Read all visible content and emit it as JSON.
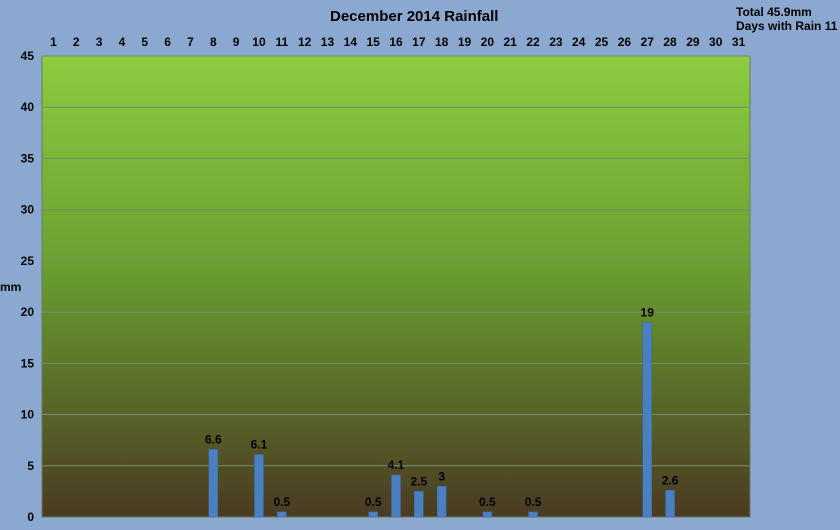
{
  "chart_data": {
    "type": "bar",
    "title": "December 2014 Rainfall",
    "ylabel": "mm",
    "xlabel": "",
    "ylim": [
      0,
      45
    ],
    "yticks": [
      0,
      5,
      10,
      15,
      20,
      25,
      30,
      35,
      40,
      45
    ],
    "grid": true,
    "x_axis_position": "top",
    "categories": [
      "1",
      "2",
      "3",
      "4",
      "5",
      "6",
      "7",
      "8",
      "9",
      "10",
      "11",
      "12",
      "13",
      "14",
      "15",
      "16",
      "17",
      "18",
      "19",
      "20",
      "21",
      "22",
      "23",
      "24",
      "25",
      "26",
      "27",
      "28",
      "29",
      "30",
      "31"
    ],
    "values": [
      0,
      0,
      0,
      0,
      0,
      0,
      0,
      6.6,
      0,
      6.1,
      0.5,
      0,
      0,
      0,
      0.5,
      4.1,
      2.5,
      3,
      0,
      0.5,
      0,
      0.5,
      0,
      0,
      0,
      0,
      19,
      2.6,
      0,
      0,
      0
    ],
    "data_labels": [
      "",
      "",
      "",
      "",
      "",
      "",
      "",
      "6.6",
      "",
      "6.1",
      "0.5",
      "",
      "",
      "",
      "0.5",
      "4.1",
      "2.5",
      "3",
      "",
      "0.5",
      "",
      "0.5",
      "",
      "",
      "",
      "",
      "19",
      "2.6",
      "",
      "",
      ""
    ],
    "annotations": [
      "Total 45.9mm",
      "Days with Rain 11"
    ],
    "colors": {
      "bar": "#4a7fc0",
      "background": "#8aa8d0",
      "plot_top": "#8ccc40",
      "plot_mid": "#6aa030",
      "plot_bottom": "#4a3a22",
      "grid": "#7a8a6a"
    }
  }
}
